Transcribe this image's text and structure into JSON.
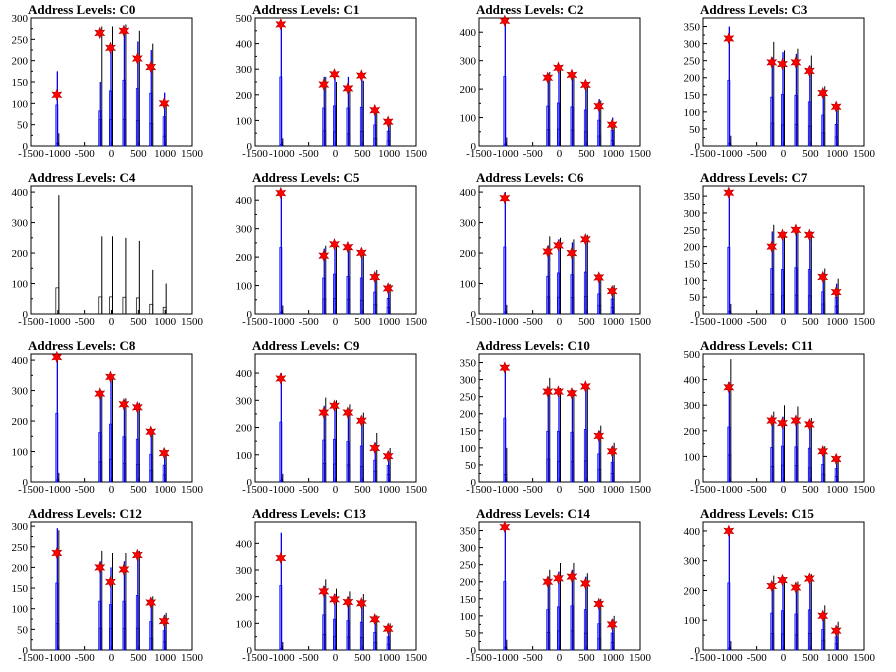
{
  "chart_data": [
    {
      "type": "bar",
      "title": "Address Levels: C0",
      "ylim": [
        0,
        300
      ],
      "yticks": [
        0,
        50,
        100,
        150,
        200,
        250,
        300
      ],
      "xlim": [
        -1500,
        1500
      ],
      "xticks": [
        "-1500",
        "-1000",
        "-500",
        "0",
        "500",
        "1000",
        "1500"
      ],
      "peaks_x": [
        -1000,
        -200,
        0,
        250,
        500,
        750,
        1000
      ],
      "outline_heights": [
        30,
        280,
        280,
        285,
        270,
        240,
        105
      ],
      "blue_heights": [
        175,
        150,
        235,
        280,
        245,
        225,
        125
      ],
      "markers": [
        120,
        265,
        230,
        270,
        205,
        185,
        100
      ]
    },
    {
      "type": "bar",
      "title": "Address Levels: C1",
      "ylim": [
        0,
        500
      ],
      "yticks": [
        0,
        100,
        200,
        300,
        400,
        500
      ],
      "xlim": [
        -1500,
        1500
      ],
      "xticks": [
        "-1500",
        "-1000",
        "-500",
        "0",
        "500",
        "1000",
        "1500"
      ],
      "peaks_x": [
        -1000,
        -200,
        0,
        250,
        500,
        750,
        1000
      ],
      "outline_heights": [
        30,
        270,
        250,
        215,
        255,
        130,
        90
      ],
      "blue_heights": [
        490,
        270,
        285,
        270,
        275,
        150,
        105
      ],
      "markers": [
        475,
        240,
        280,
        225,
        275,
        140,
        95
      ]
    },
    {
      "type": "bar",
      "title": "Address Levels: C2",
      "ylim": [
        0,
        450
      ],
      "yticks": [
        0,
        100,
        200,
        300,
        400
      ],
      "xlim": [
        -1500,
        1500
      ],
      "xticks": [
        "-1500",
        "-1000",
        "-500",
        "0",
        "500",
        "1000",
        "1500"
      ],
      "peaks_x": [
        -1000,
        -200,
        0,
        250,
        500,
        750,
        1000
      ],
      "outline_heights": [
        30,
        260,
        270,
        255,
        225,
        160,
        85
      ],
      "blue_heights": [
        445,
        255,
        275,
        250,
        230,
        165,
        100
      ],
      "markers": [
        440,
        240,
        275,
        250,
        215,
        140,
        75
      ]
    },
    {
      "type": "bar",
      "title": "Address Levels: C3",
      "ylim": [
        0,
        375
      ],
      "yticks": [
        0,
        50,
        100,
        150,
        200,
        250,
        300,
        350
      ],
      "xlim": [
        -1500,
        1500
      ],
      "xticks": [
        "-1500",
        "-1000",
        "-500",
        "0",
        "500",
        "1000",
        "1500"
      ],
      "peaks_x": [
        -1000,
        -200,
        0,
        250,
        500,
        750,
        1000
      ],
      "outline_heights": [
        30,
        305,
        280,
        285,
        265,
        175,
        120
      ],
      "blue_heights": [
        350,
        260,
        275,
        270,
        235,
        165,
        115
      ],
      "markers": [
        315,
        245,
        240,
        245,
        220,
        155,
        115
      ]
    },
    {
      "type": "bar",
      "title": "Address Levels: C4",
      "ylim": [
        0,
        420
      ],
      "yticks": [
        0,
        100,
        200,
        300,
        400
      ],
      "xlim": [
        -1500,
        1500
      ],
      "xticks": [
        "-1500",
        "-1000",
        "-500",
        "0",
        "500",
        "1000",
        "1500"
      ],
      "peaks_x": [
        -1000,
        -200,
        0,
        250,
        500,
        750,
        1000
      ],
      "outline_heights": [
        390,
        255,
        255,
        250,
        240,
        145,
        100
      ],
      "blue_heights": [],
      "markers": []
    },
    {
      "type": "bar",
      "title": "Address Levels: C5",
      "ylim": [
        0,
        450
      ],
      "yticks": [
        0,
        100,
        200,
        300,
        400
      ],
      "xlim": [
        -1500,
        1500
      ],
      "xticks": [
        "-1500",
        "-1000",
        "-500",
        "0",
        "500",
        "1000",
        "1500"
      ],
      "peaks_x": [
        -1000,
        -200,
        0,
        250,
        500,
        750,
        1000
      ],
      "outline_heights": [
        30,
        240,
        250,
        235,
        220,
        155,
        105
      ],
      "blue_heights": [
        425,
        230,
        255,
        240,
        230,
        140,
        100
      ],
      "markers": [
        425,
        205,
        245,
        235,
        215,
        130,
        90
      ]
    },
    {
      "type": "bar",
      "title": "Address Levels: C6",
      "ylim": [
        0,
        420
      ],
      "yticks": [
        0,
        100,
        200,
        300,
        400
      ],
      "xlim": [
        -1500,
        1500
      ],
      "xticks": [
        "-1500",
        "-1000",
        "-500",
        "0",
        "500",
        "1000",
        "1500"
      ],
      "peaks_x": [
        -1000,
        -200,
        0,
        250,
        500,
        750,
        1000
      ],
      "outline_heights": [
        30,
        255,
        250,
        245,
        260,
        130,
        95
      ],
      "blue_heights": [
        400,
        225,
        245,
        235,
        250,
        120,
        90
      ],
      "markers": [
        380,
        205,
        225,
        200,
        245,
        120,
        75
      ]
    },
    {
      "type": "bar",
      "title": "Address Levels: C7",
      "ylim": [
        0,
        380
      ],
      "yticks": [
        0,
        50,
        100,
        150,
        200,
        250,
        300,
        350
      ],
      "xlim": [
        -1500,
        1500
      ],
      "xticks": [
        "-1500",
        "-1000",
        "-500",
        "0",
        "500",
        "1000",
        "1500"
      ],
      "peaks_x": [
        -1000,
        -200,
        0,
        250,
        500,
        750,
        1000
      ],
      "outline_heights": [
        30,
        265,
        245,
        255,
        245,
        135,
        105
      ],
      "blue_heights": [
        360,
        245,
        240,
        250,
        240,
        120,
        90
      ],
      "markers": [
        360,
        200,
        235,
        250,
        235,
        110,
        65
      ]
    },
    {
      "type": "bar",
      "title": "Address Levels: C8",
      "ylim": [
        0,
        420
      ],
      "yticks": [
        0,
        100,
        200,
        300,
        400
      ],
      "xlim": [
        -1500,
        1500
      ],
      "xticks": [
        "-1500",
        "-1000",
        "-500",
        "0",
        "500",
        "1000",
        "1500"
      ],
      "peaks_x": [
        -1000,
        -200,
        0,
        250,
        500,
        750,
        1000
      ],
      "outline_heights": [
        30,
        300,
        340,
        275,
        260,
        170,
        105
      ],
      "blue_heights": [
        410,
        295,
        345,
        270,
        255,
        165,
        100
      ],
      "markers": [
        410,
        290,
        345,
        255,
        245,
        165,
        95
      ]
    },
    {
      "type": "bar",
      "title": "Address Levels: C9",
      "ylim": [
        0,
        470
      ],
      "yticks": [
        0,
        100,
        200,
        300,
        400
      ],
      "xlim": [
        -1500,
        1500
      ],
      "xticks": [
        "-1500",
        "-1000",
        "-500",
        "0",
        "500",
        "1000",
        "1500"
      ],
      "peaks_x": [
        -1000,
        -200,
        0,
        250,
        500,
        750,
        1000
      ],
      "outline_heights": [
        30,
        310,
        300,
        285,
        255,
        180,
        125
      ],
      "blue_heights": [
        400,
        280,
        285,
        270,
        240,
        145,
        110
      ],
      "markers": [
        380,
        255,
        280,
        255,
        225,
        125,
        95
      ]
    },
    {
      "type": "bar",
      "title": "Address Levels: C10",
      "ylim": [
        0,
        375
      ],
      "yticks": [
        0,
        50,
        100,
        150,
        200,
        250,
        300,
        350
      ],
      "xlim": [
        -1500,
        1500
      ],
      "xticks": [
        "-1500",
        "-1000",
        "-500",
        "0",
        "500",
        "1000",
        "1500"
      ],
      "peaks_x": [
        -1000,
        -200,
        0,
        250,
        500,
        750,
        1000
      ],
      "outline_heights": [
        100,
        305,
        275,
        270,
        280,
        165,
        115
      ],
      "blue_heights": [
        340,
        270,
        270,
        265,
        280,
        150,
        105
      ],
      "markers": [
        335,
        265,
        265,
        260,
        280,
        135,
        90
      ]
    },
    {
      "type": "bar",
      "title": "Address Levels: C11",
      "ylim": [
        0,
        500
      ],
      "yticks": [
        0,
        100,
        200,
        300,
        400,
        500
      ],
      "xlim": [
        -1500,
        1500
      ],
      "xticks": [
        "-1500",
        "-1000",
        "-500",
        "0",
        "500",
        "1000",
        "1500"
      ],
      "peaks_x": [
        -1000,
        -200,
        0,
        250,
        500,
        750,
        1000
      ],
      "outline_heights": [
        480,
        275,
        300,
        295,
        250,
        140,
        100
      ],
      "blue_heights": [
        390,
        245,
        255,
        250,
        240,
        125,
        95
      ],
      "markers": [
        370,
        240,
        230,
        240,
        225,
        120,
        90
      ]
    },
    {
      "type": "bar",
      "title": "Address Levels: C12",
      "ylim": [
        0,
        310
      ],
      "yticks": [
        0,
        50,
        100,
        150,
        200,
        250,
        300
      ],
      "xlim": [
        -1500,
        1500
      ],
      "xticks": [
        "-1500",
        "-1000",
        "-500",
        "0",
        "500",
        "1000",
        "1500"
      ],
      "peaks_x": [
        -1000,
        -200,
        0,
        250,
        500,
        750,
        1000
      ],
      "outline_heights": [
        290,
        240,
        235,
        235,
        240,
        130,
        90
      ],
      "blue_heights": [
        295,
        215,
        200,
        215,
        240,
        125,
        85
      ],
      "markers": [
        235,
        200,
        165,
        195,
        230,
        115,
        70
      ]
    },
    {
      "type": "bar",
      "title": "Address Levels: C13",
      "ylim": [
        0,
        480
      ],
      "yticks": [
        0,
        100,
        200,
        300,
        400
      ],
      "xlim": [
        -1500,
        1500
      ],
      "xticks": [
        "-1500",
        "-1000",
        "-500",
        "0",
        "500",
        "1000",
        "1500"
      ],
      "peaks_x": [
        -1000,
        -200,
        0,
        250,
        500,
        750,
        1000
      ],
      "outline_heights": [
        30,
        265,
        230,
        220,
        210,
        130,
        100
      ],
      "blue_heights": [
        440,
        240,
        210,
        200,
        190,
        120,
        90
      ],
      "markers": [
        345,
        220,
        190,
        180,
        175,
        115,
        80
      ]
    },
    {
      "type": "bar",
      "title": "Address Levels: C14",
      "ylim": [
        0,
        375
      ],
      "yticks": [
        0,
        50,
        100,
        150,
        200,
        250,
        300,
        350
      ],
      "xlim": [
        -1500,
        1500
      ],
      "xticks": [
        "-1500",
        "-1000",
        "-500",
        "0",
        "500",
        "1000",
        "1500"
      ],
      "peaks_x": [
        -1000,
        -200,
        0,
        250,
        500,
        750,
        1000
      ],
      "outline_heights": [
        30,
        235,
        255,
        255,
        225,
        150,
        100
      ],
      "blue_heights": [
        365,
        215,
        230,
        235,
        215,
        140,
        90
      ],
      "markers": [
        360,
        200,
        210,
        215,
        195,
        135,
        75
      ]
    },
    {
      "type": "bar",
      "title": "Address Levels: C15",
      "ylim": [
        0,
        430
      ],
      "yticks": [
        0,
        100,
        200,
        300,
        400
      ],
      "xlim": [
        -1500,
        1500
      ],
      "xticks": [
        "-1500",
        "-1000",
        "-500",
        "0",
        "500",
        "1000",
        "1500"
      ],
      "peaks_x": [
        -1000,
        -200,
        0,
        250,
        500,
        750,
        1000
      ],
      "outline_heights": [
        30,
        250,
        245,
        230,
        255,
        150,
        95
      ],
      "blue_heights": [
        410,
        225,
        240,
        220,
        245,
        125,
        80
      ],
      "markers": [
        400,
        215,
        235,
        210,
        240,
        115,
        65
      ]
    }
  ],
  "colors": {
    "outline": "#000000",
    "blue": "#0000ff",
    "marker": "#ff0000",
    "marker_stroke": "#b30000"
  }
}
